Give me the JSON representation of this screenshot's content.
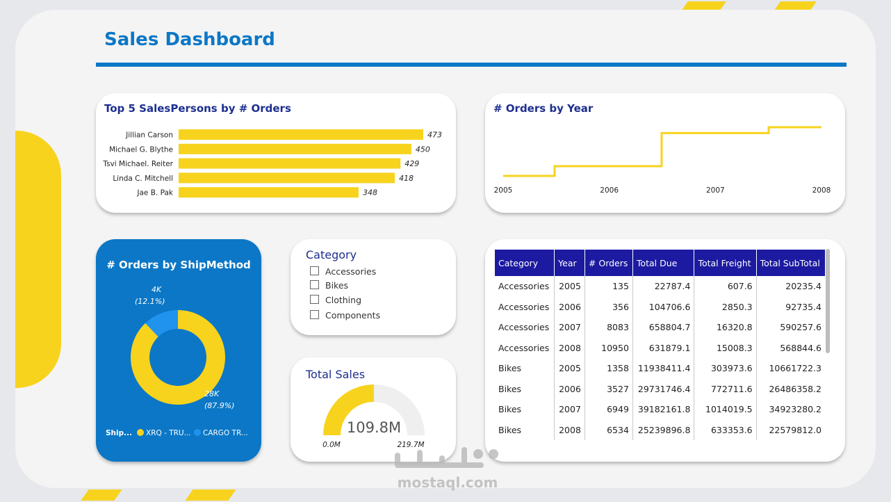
{
  "header": {
    "title": "Sales Dashboard"
  },
  "colors": {
    "accent_blue": "#0b77c6",
    "bar_yellow": "#f7d31e",
    "header_navy": "#1c1aa0",
    "donut_blue": "#1f93ee"
  },
  "top_salespersons": {
    "title": "Top 5 SalesPersons by # Orders",
    "chart_data": {
      "type": "bar",
      "orientation": "horizontal",
      "title": "Top 5 SalesPersons by # Orders",
      "categories": [
        "Jillian Carson",
        "Michael G. Blythe",
        "Tsvi Michael. Reiter",
        "Linda C. Mitchell",
        "Jae B. Pak"
      ],
      "values": [
        473,
        450,
        429,
        418,
        348
      ],
      "data_labels": [
        "473",
        "450",
        "429",
        "418",
        "348"
      ]
    }
  },
  "orders_by_year": {
    "title": "# Orders by Year",
    "chart_data": {
      "type": "line",
      "step": true,
      "title": "# Orders by Year",
      "x": [
        2005,
        2006,
        2007,
        2008
      ],
      "x_labels": [
        "2005",
        "2006",
        "2007",
        "2008"
      ],
      "y_estimated": [
        1400,
        3900,
        12400,
        13900
      ],
      "grid": false
    }
  },
  "ship_method": {
    "title": "# Orders by ShipMethod",
    "chart_data": {
      "type": "pie",
      "donut": true,
      "title": "# Orders by ShipMethod",
      "slices": [
        {
          "name": "XRQ - TRU...",
          "value_label": "28K",
          "percent_label": "(87.9%)",
          "percent": 87.9,
          "color": "#f7d31e"
        },
        {
          "name": "CARGO TR...",
          "value_label": "4K",
          "percent_label": "(12.1%)",
          "percent": 12.1,
          "color": "#1f93ee"
        }
      ],
      "legend_title": "Ship...",
      "legend_placement": "bottom"
    }
  },
  "category_slicer": {
    "title": "Category",
    "options": [
      "Accessories",
      "Bikes",
      "Clothing",
      "Components"
    ]
  },
  "total_sales": {
    "title": "Total Sales",
    "chart_data": {
      "type": "gauge",
      "value": 109.8,
      "min": 0,
      "max": 219.7,
      "unit": "M",
      "value_label": "109.8M",
      "min_label": "0.0M",
      "max_label": "219.7M"
    }
  },
  "sales_table": {
    "columns": [
      "Category",
      "Year",
      "# Orders",
      "Total Due",
      "Total Freight",
      "Total SubTotal"
    ],
    "rows": [
      [
        "Accessories",
        "2005",
        "135",
        "22787.4",
        "607.6",
        "20235.4"
      ],
      [
        "Accessories",
        "2006",
        "356",
        "104706.6",
        "2850.3",
        "92735.4"
      ],
      [
        "Accessories",
        "2007",
        "8083",
        "658804.7",
        "16320.8",
        "590257.6"
      ],
      [
        "Accessories",
        "2008",
        "10950",
        "631879.1",
        "15008.3",
        "568844.6"
      ],
      [
        "Bikes",
        "2005",
        "1358",
        "11938411.4",
        "303973.6",
        "10661722.3"
      ],
      [
        "Bikes",
        "2006",
        "3527",
        "29731746.4",
        "772711.6",
        "26486358.2"
      ],
      [
        "Bikes",
        "2007",
        "6949",
        "39182161.8",
        "1014019.5",
        "34923280.2"
      ],
      [
        "Bikes",
        "2008",
        "6534",
        "25239896.8",
        "633353.6",
        "22579812.0"
      ]
    ]
  },
  "watermark": {
    "text": "mostaql.com"
  }
}
